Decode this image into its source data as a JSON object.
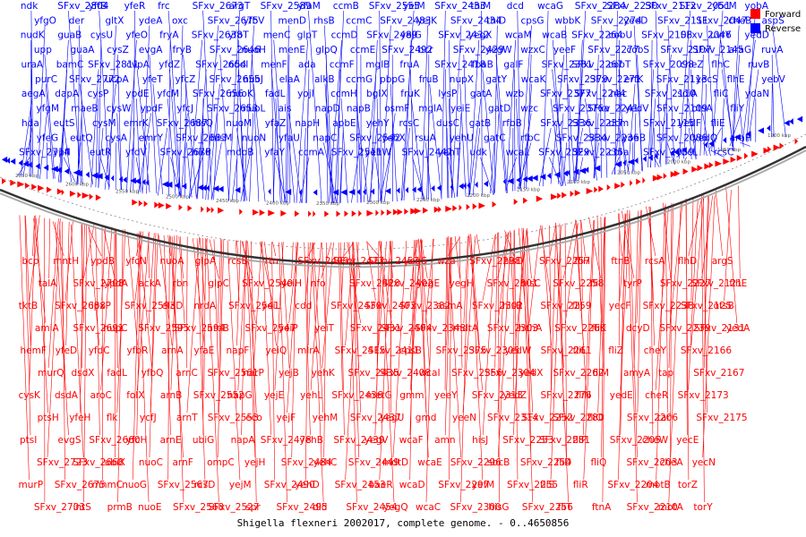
{
  "caption": "Shigella flexneri 2002017, complete genome. - 0..4650856",
  "legend": {
    "forward_label": "Forward",
    "reverse_label": "Reverse",
    "forward_color": "#ff0000",
    "reverse_color": "#0000ff"
  },
  "scale_ticks": [
    "2650 kbp",
    "2600 kbp",
    "2550 kbp",
    "2500 kbp",
    "2450 kbp",
    "2400 kbp",
    "2350 kbp",
    "2300 kbp",
    "2250 kbp",
    "2200 kbp",
    "2150 kbp",
    "2100 kbp",
    "2050 kbp",
    "2000 kbp",
    "1950 kbp",
    "1900 kbp"
  ],
  "reverse_genes": [
    "ndk",
    "yfgO",
    "nudK",
    "upp",
    "uraA",
    "purC",
    "aegA",
    "yfgM",
    "hda",
    "yfeG",
    "SFxv_2714",
    "SFxv_2804",
    "der",
    "guaB",
    "guaA",
    "bamC",
    "SFxv_2772",
    "dapA",
    "maeB",
    "eutS",
    "eutQ",
    "ypfI",
    "yffB",
    "gltX",
    "cysU",
    "cysZ",
    "SFxv_2811",
    "ucpA",
    "cysP",
    "cysW",
    "cysM",
    "cysA",
    "eutR",
    "yfeR",
    "ydeA",
    "yfeO",
    "evgA",
    "cvpA",
    "yfeT",
    "ypdE",
    "ypdF",
    "emrK",
    "emrY",
    "yfdV",
    "frc",
    "oxc",
    "fryA",
    "fryB",
    "yfdZ",
    "yfcZ",
    "yfcM",
    "yfcJ",
    "SFxv_2687",
    "SFxv_2683",
    "SFxv_2676",
    "SFxv_2673",
    "SFxv_2675",
    "SFxv_2638",
    "SFxv_2646",
    "SFxv_2654",
    "SFxv_2655",
    "SFxv_2656",
    "SFxv_2653",
    "hisQ",
    "hisM",
    "hisP",
    "argT",
    "yfbV",
    "yfbT",
    "nuoH",
    "nuoI",
    "nuoJ",
    "nuoK",
    "nuoL",
    "nuoM",
    "nuoN",
    "mdoB",
    "SFxv_2589",
    "menD",
    "menC",
    "menE",
    "menF",
    "elaA",
    "fadL",
    "ais",
    "yfaZ",
    "yfaU",
    "yfaY",
    "yfaM",
    "rhsB",
    "glpT",
    "glpQ",
    "ada",
    "alkB",
    "yojI",
    "napD",
    "napH",
    "napC",
    "ccmA",
    "ccmB",
    "ccmC",
    "ccmD",
    "ccmE",
    "ccmF",
    "ccmG",
    "ccmH",
    "napB",
    "apbE",
    "SFxv_2542",
    "SFxv_2511",
    "SFxv_2555",
    "SFxv_2483",
    "SFxv_2489",
    "SFxv_2492",
    "mglB",
    "pbpG",
    "bglX",
    "osmF",
    "yehY",
    "yehX",
    "yehW",
    "yeiM",
    "yejK",
    "yejG",
    "bcr",
    "fruA",
    "fruB",
    "fruK",
    "mglA",
    "rcsC",
    "rsuA",
    "SFxv_2442",
    "SFxv_2433",
    "SFxv_2434",
    "SFxv_2432",
    "SFxv_2429",
    "SFxv_2418",
    "nupX",
    "lysP",
    "yeiE",
    "dusC",
    "yehU",
    "yehT",
    "thiM",
    "thiD",
    "yegX",
    "yegW",
    "fbaB",
    "gatY",
    "gatA",
    "gatD",
    "gatB",
    "gatC",
    "udk",
    "dcd",
    "cpsG",
    "wcaM",
    "wzxC",
    "galF",
    "wcaK",
    "wzb",
    "wzc",
    "rfbB",
    "rfbC",
    "wcaL",
    "wcaG",
    "wbbK",
    "wcaB",
    "yeeF",
    "SFxv_2381",
    "SFxv_2379",
    "SFxv_2377",
    "SFxv_2376a",
    "SFxv_2336",
    "SFxv_2334",
    "SFxv_2329",
    "SFxv_2284",
    "SFxv_2274",
    "SFxv_2264",
    "SFxv_2277",
    "SFxv_2267",
    "SFxv_2271",
    "SFxv_2244",
    "SFxv_2241",
    "SFxv_2237",
    "SFxv_2236",
    "SFxv_2235a",
    "SFxv_2230",
    "yeeD",
    "cobU",
    "cobS",
    "cobT",
    "erfK",
    "nac",
    "yedV",
    "dcm",
    "yoeB",
    "cbl",
    "SFxv_2112",
    "SFxv_2111",
    "SFxv_2108",
    "SFxv_2107",
    "SFxv_2098",
    "SFxv_2113",
    "SFxv_2110",
    "SFxv_2109",
    "SFxv_2115",
    "SFxv_2086",
    "SFxv_2059",
    "SFxv_2051",
    "SFxv_2047",
    "SFxv_2046",
    "SFxv_2145",
    "cheZ",
    "yecS",
    "sdiA",
    "otsA",
    "yedF",
    "yedQ",
    "ybcL",
    "ybcM",
    "cheB",
    "uvrY",
    "araG",
    "flhC",
    "flhE",
    "fliC",
    "fliY",
    "fliE",
    "araH",
    "rcsC",
    "yobA",
    "aspS",
    "yedD",
    "ruvA",
    "ruvB",
    "yebV",
    "ydaN"
  ],
  "forward_genes": [
    "bcp",
    "talA",
    "tktB",
    "amiA",
    "hemF",
    "murQ",
    "cysK",
    "ptsH",
    "ptsI",
    "SFxv_2723",
    "murP",
    "SFxv_2703",
    "mntH",
    "SFxv_2708",
    "SFxv_2688",
    "SFxv_2691",
    "yfeD",
    "dsdX",
    "dsdA",
    "yfeH",
    "evgS",
    "SFxv_2668",
    "SFxv_2675",
    "intS",
    "ypdB",
    "ypdA",
    "lpxP",
    "nupC",
    "yfdC",
    "fadL",
    "aroC",
    "flk",
    "SFxv_2660",
    "ubiX",
    "mnmC",
    "prmB",
    "yfcN",
    "ackA",
    "SFxv_2593",
    "SFxv_2595",
    "yfbR",
    "yfbQ",
    "folX",
    "ycfJ",
    "yfcH",
    "nuoC",
    "nuoG",
    "nuoE",
    "nuoA",
    "rbn",
    "elaD",
    "SFxv_2594",
    "arnA",
    "arnC",
    "arnB",
    "arnT",
    "arnE",
    "arnF",
    "SFxv_2567",
    "SFxv_2568",
    "glpA",
    "glpC",
    "nrdA",
    "nrdB",
    "yfaE",
    "SFxv_2561",
    "SFxv_2552",
    "SFxv_2553",
    "ubiG",
    "ompC",
    "rcsD",
    "SFxv_2527",
    "rcsB",
    "SFxv_2540",
    "SFxv_2541",
    "SFxv_2547",
    "napF",
    "narP",
    "napG",
    "eco",
    "napA",
    "yejH",
    "yejM",
    "spr",
    "rtn",
    "yeiH",
    "yeiL",
    "yeiP",
    "yeiQ",
    "yejB",
    "yejE",
    "yejF",
    "SFxv_2478",
    "SFxv_2484",
    "SFxv_2490",
    "SFxv_2495",
    "SFxv_2499",
    "nfo",
    "cdd",
    "yeiT",
    "mlrA",
    "yehK",
    "yehL",
    "yehM",
    "yehB",
    "yehC",
    "yehD",
    "dld",
    "SFxv_2427",
    "SFxv_2428",
    "SFxv_2430",
    "SFxv_2431",
    "SFxv_2415",
    "SFxv_2435",
    "SFxv_2436",
    "SFxv_2437",
    "SFxv_2439",
    "SFxv_2449",
    "SFxv_2453",
    "SFxv_2454",
    "SFxv_2457",
    "SFxv_2402",
    "SFxv_2403",
    "SFxv_2404",
    "SFxv_2411",
    "SFxv_2408",
    "metG",
    "yegU",
    "yegV",
    "mdtD",
    "baeR",
    "yegQ",
    "yegS",
    "yegE",
    "SFxv_2382",
    "SFxv_2348",
    "cpsB",
    "wcaI",
    "gmm",
    "gmd",
    "wcaF",
    "wcaE",
    "wcaD",
    "wcaC",
    "wza",
    "yegH",
    "asmA",
    "mdtA",
    "SFxv_2375",
    "SFxv_2356",
    "yeeY",
    "yeeN",
    "amn",
    "SFxv_2296",
    "SFxv_2297",
    "SFxv_2300",
    "SFxv_2298",
    "SFxv_2301",
    "SFxv_2302",
    "SFxv_2303",
    "SFxv_2305",
    "SFxv_2304",
    "SFxv_2313",
    "SFxv_2314",
    "hisJ",
    "sbcB",
    "yefM",
    "hisG",
    "hisD",
    "hisC",
    "hisB",
    "hchA",
    "yedW",
    "yedX",
    "yedZ",
    "SFxv_2252",
    "SFxv_2253",
    "SFxv_2254",
    "SFxv_2255",
    "SFxv_2256",
    "SFxv_2257",
    "SFxv_2258",
    "SFxv_2259",
    "SFxv_2260",
    "SFxv_2261",
    "SFxv_2262",
    "SFxv_2276",
    "SFxv_2280",
    "SFxv_2281",
    "fliD",
    "fliS",
    "fliT",
    "fliH",
    "fliI",
    "fliJ",
    "fliK",
    "fliL",
    "fliM",
    "fliN",
    "fliO",
    "fliP",
    "fliQ",
    "fliR",
    "ftnA",
    "ftnB",
    "tyrP",
    "yecF",
    "dcyD",
    "fliZ",
    "amyA",
    "yedE",
    "SFxv_2206",
    "SFxv_2205",
    "SFxv_2203",
    "SFxv_2204",
    "SFxv_2210",
    "rcsA",
    "SFxv_2227",
    "SFxv_2238",
    "SFxv_2239",
    "cheY",
    "tap",
    "cheR",
    "tar",
    "cheW",
    "cheA",
    "motB",
    "motA",
    "flhD",
    "SFxv_2121",
    "SFxv_2125",
    "SFxv_2131",
    "SFxv_2166",
    "SFxv_2167",
    "SFxv_2173",
    "SFxv_2175",
    "yecE",
    "yecN",
    "torZ",
    "torY",
    "argS",
    "flhE",
    "otsB",
    "yedA"
  ]
}
